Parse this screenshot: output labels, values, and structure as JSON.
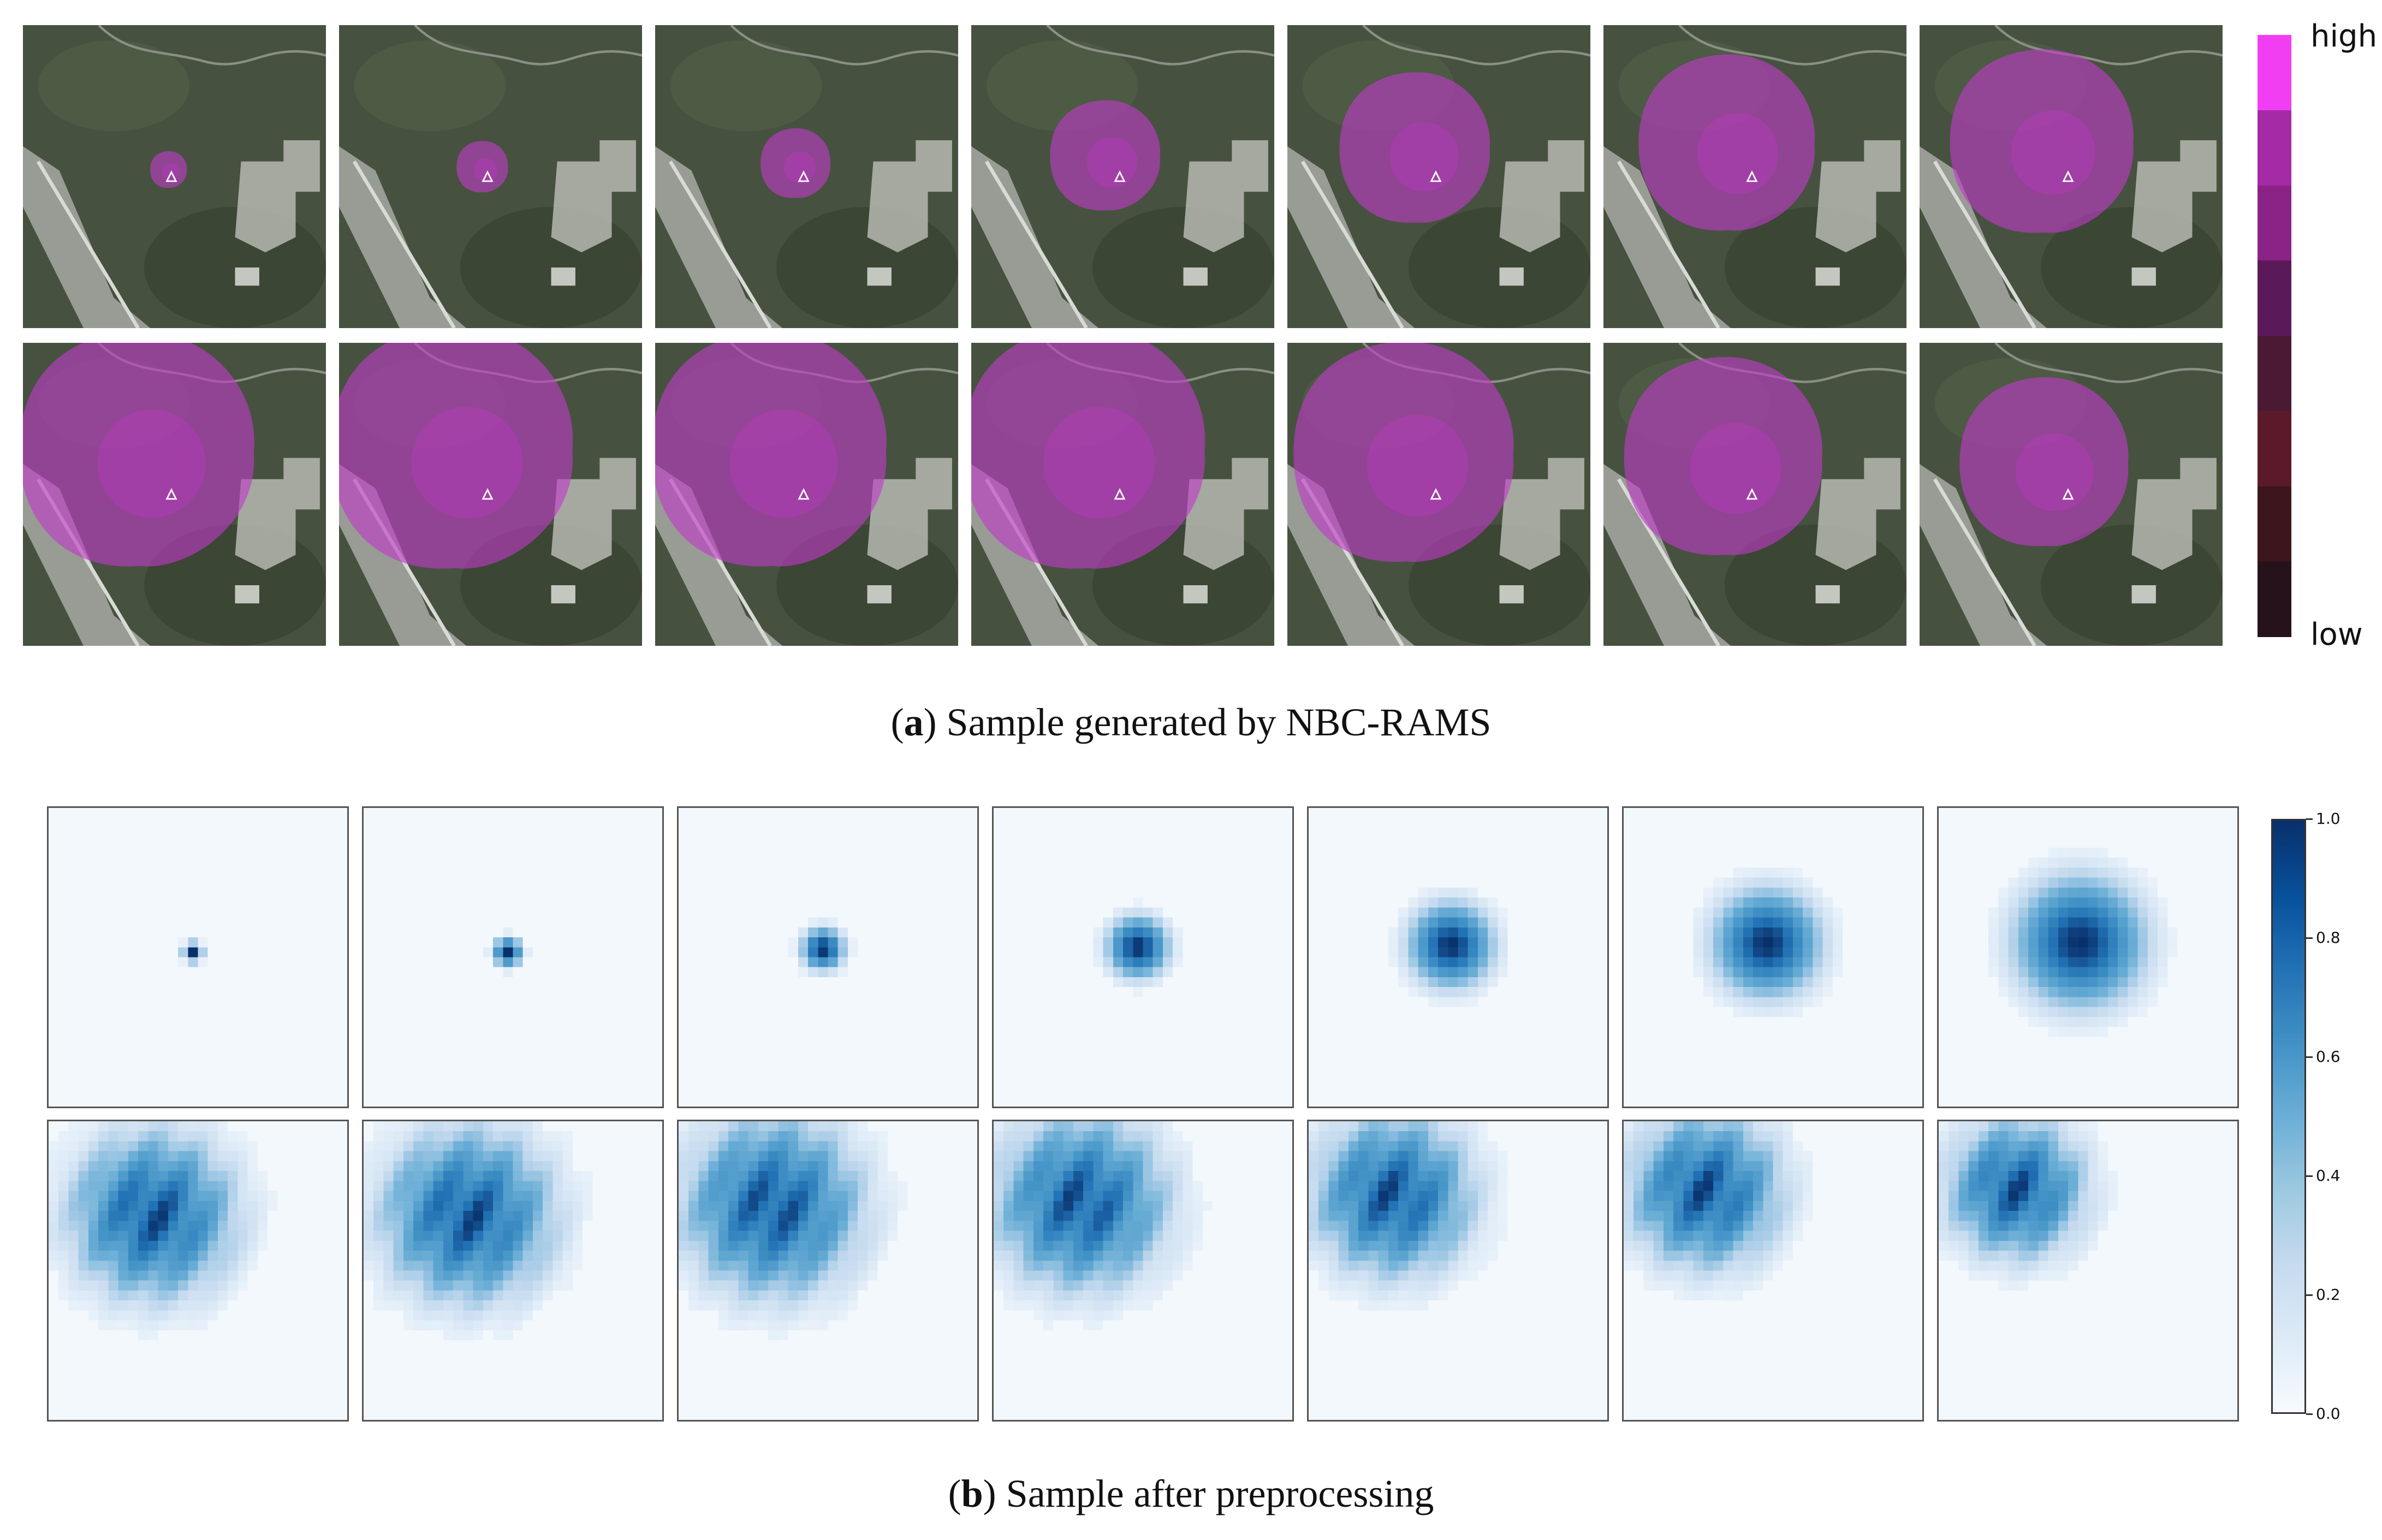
{
  "panel_a": {
    "caption_letter": "a",
    "caption_text": "Sample generated by NBC-RAMS",
    "legend": {
      "high_label": "high",
      "low_label": "low"
    },
    "frames": 14,
    "source_marker_icon": "triangle-marker-icon",
    "colors": {
      "plume": "#c03ac8",
      "legend_steps": [
        "#f23ef3",
        "#a52aa5",
        "#8b2386",
        "#5a1a5a",
        "#4a1a34",
        "#5b1a2a",
        "#3d151c",
        "#25121a"
      ]
    },
    "plume_radius_levels": [
      0.1,
      0.14,
      0.19,
      0.3,
      0.41,
      0.48,
      0.5,
      0.64,
      0.66,
      0.64,
      0.66,
      0.6,
      0.54,
      0.46
    ]
  },
  "panel_b": {
    "caption_letter": "b",
    "caption_text": "Sample after preprocessing",
    "frames": 14,
    "colorbar": {
      "ticks": [
        "1.0",
        "0.8",
        "0.6",
        "0.4",
        "0.2",
        "0.0"
      ],
      "colormap": "Blues"
    }
  }
}
